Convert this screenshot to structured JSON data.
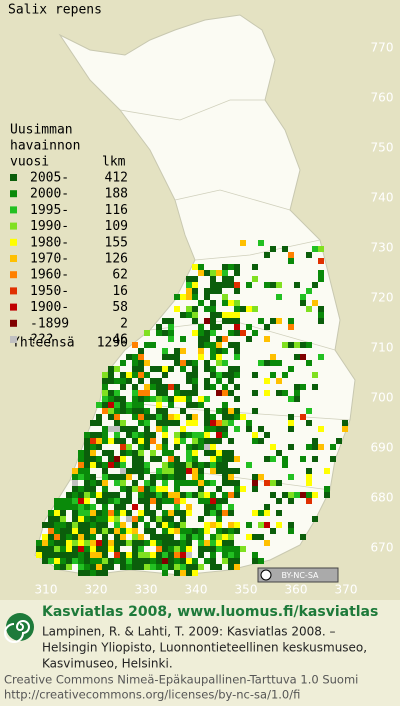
{
  "map": {
    "title": "Salix repens",
    "legend": {
      "header": [
        "Uusimman",
        "havainnon",
        "vuosi",
        "lkm"
      ],
      "rows": [
        {
          "label": "2005-",
          "count": 412,
          "color": "#0b5e0b"
        },
        {
          "label": "2000-",
          "count": 188,
          "color": "#0a8a0a"
        },
        {
          "label": "1995-",
          "count": 116,
          "color": "#22c022"
        },
        {
          "label": "1990-",
          "count": 109,
          "color": "#80e020"
        },
        {
          "label": "1980-",
          "count": 155,
          "color": "#ffff00"
        },
        {
          "label": "1970-",
          "count": 126,
          "color": "#ffc000"
        },
        {
          "label": "1960-",
          "count": 62,
          "color": "#ff8000"
        },
        {
          "label": "1950-",
          "count": 16,
          "color": "#e03000"
        },
        {
          "label": "1900-",
          "count": 58,
          "color": "#c00000"
        },
        {
          "label": "-1899",
          "count": 2,
          "color": "#800000"
        },
        {
          "label": "???",
          "count": 46,
          "color": "#c0c0c0"
        }
      ],
      "total_label": "Yhteensä",
      "total": 1290
    },
    "y_labels": [
      770,
      760,
      750,
      740,
      730,
      720,
      710,
      700,
      690,
      680,
      670
    ],
    "x_labels": [
      310,
      320,
      330,
      340,
      350,
      360,
      370
    ],
    "license_badge": "BY-NC-SA"
  },
  "footer": {
    "heading": "Kasviatlas 2008, www.luomus.fi/kasviatlas",
    "citation": [
      "Lampinen, R. & Lahti, T. 2009: Kasviatlas 2008. –",
      "Helsingin Yliopisto, Luonnontieteellinen keskusmuseo,",
      "Kasvimuseo, Helsinki."
    ],
    "license": [
      "Creative Commons Nimeä-Epäkaupallinen-Tarttuva 1.0 Suomi",
      "http://creativecommons.org/licenses/by-nc-sa/1.0/fi"
    ]
  }
}
